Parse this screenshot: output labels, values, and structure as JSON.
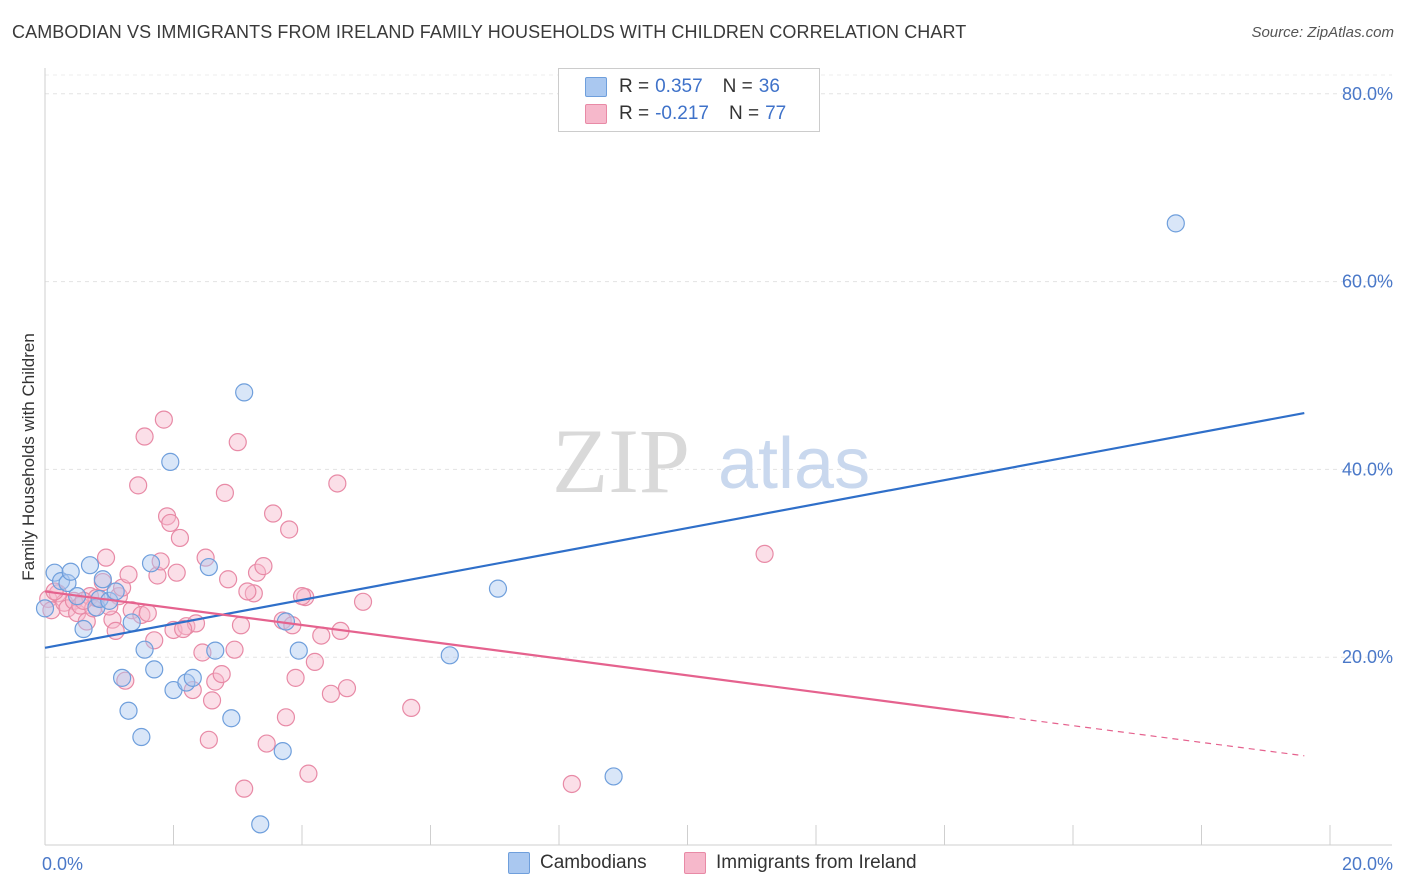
{
  "title": "CAMBODIAN VS IMMIGRANTS FROM IRELAND FAMILY HOUSEHOLDS WITH CHILDREN CORRELATION CHART",
  "source": "Source: ZipAtlas.com",
  "legend": {
    "rows": [
      {
        "r_label": "R =",
        "r_value": "0.357",
        "n_label": "N =",
        "n_value": "36"
      },
      {
        "r_label": "R =",
        "r_value": "-0.217",
        "n_label": "N =",
        "n_value": "77"
      }
    ]
  },
  "bottom_legend": [
    "Cambodians",
    "Immigrants from Ireland"
  ],
  "watermark": {
    "zip": "ZIP",
    "atlas": "atlas"
  },
  "colors": {
    "blue_fill": "#aac8f0",
    "blue_stroke": "#6f9fdc",
    "blue_line": "#2f6fc9",
    "pink_fill": "#f6b8cb",
    "pink_stroke": "#e88aa6",
    "pink_line": "#e5628e"
  },
  "chart_data": {
    "type": "scatter",
    "title": "CAMBODIAN VS IMMIGRANTS FROM IRELAND FAMILY HOUSEHOLDS WITH CHILDREN CORRELATION CHART",
    "xlabel": "",
    "ylabel": "Family Households with Children",
    "xlim": [
      0,
      20
    ],
    "ylim": [
      0,
      82
    ],
    "x_ticks": [
      "0.0%",
      "20.0%"
    ],
    "y_ticks": [
      {
        "value": 80,
        "label": "80.0%"
      },
      {
        "value": 60,
        "label": "60.0%"
      },
      {
        "value": 40,
        "label": "40.0%"
      },
      {
        "value": 20,
        "label": "20.0%"
      }
    ],
    "series": [
      {
        "name": "Cambodians",
        "r": 0.357,
        "n": 36,
        "trend": {
          "x0": 0,
          "y0": 21.0,
          "x1": 19.6,
          "y1": 46.0
        },
        "points": [
          [
            0.0,
            25.2
          ],
          [
            0.15,
            29.0
          ],
          [
            0.25,
            28.1
          ],
          [
            0.35,
            27.9
          ],
          [
            0.4,
            29.1
          ],
          [
            0.5,
            26.5
          ],
          [
            0.6,
            23.0
          ],
          [
            0.7,
            29.8
          ],
          [
            0.8,
            25.3
          ],
          [
            0.85,
            26.2
          ],
          [
            0.9,
            28.3
          ],
          [
            1.0,
            26.0
          ],
          [
            1.1,
            27.0
          ],
          [
            1.2,
            17.8
          ],
          [
            1.3,
            14.3
          ],
          [
            1.35,
            23.7
          ],
          [
            1.5,
            11.5
          ],
          [
            1.55,
            20.8
          ],
          [
            1.65,
            30.0
          ],
          [
            1.7,
            18.7
          ],
          [
            1.95,
            40.8
          ],
          [
            2.0,
            16.5
          ],
          [
            2.2,
            17.3
          ],
          [
            2.3,
            17.8
          ],
          [
            2.55,
            29.6
          ],
          [
            2.65,
            20.7
          ],
          [
            2.9,
            13.5
          ],
          [
            3.1,
            48.2
          ],
          [
            3.35,
            2.2
          ],
          [
            3.7,
            10.0
          ],
          [
            3.75,
            23.8
          ],
          [
            3.95,
            20.7
          ],
          [
            6.3,
            20.2
          ],
          [
            7.05,
            27.3
          ],
          [
            8.85,
            7.3
          ],
          [
            17.6,
            66.2
          ]
        ]
      },
      {
        "name": "Immigrants from Ireland",
        "r": -0.217,
        "n": 77,
        "trend": {
          "x0": 0,
          "y0": 27.0,
          "x1": 15.0,
          "y1": 13.6,
          "dash_x1": 19.6,
          "dash_y1": 9.5
        },
        "points": [
          [
            0.05,
            26.2
          ],
          [
            0.1,
            25.0
          ],
          [
            0.2,
            26.8
          ],
          [
            0.3,
            25.8
          ],
          [
            0.35,
            25.2
          ],
          [
            0.45,
            26.0
          ],
          [
            0.5,
            24.7
          ],
          [
            0.55,
            25.5
          ],
          [
            0.65,
            23.8
          ],
          [
            0.7,
            26.5
          ],
          [
            0.75,
            25.2
          ],
          [
            0.8,
            26.3
          ],
          [
            0.9,
            28.0
          ],
          [
            0.95,
            30.6
          ],
          [
            1.05,
            24.0
          ],
          [
            1.1,
            22.8
          ],
          [
            1.15,
            26.5
          ],
          [
            1.2,
            27.4
          ],
          [
            1.3,
            28.8
          ],
          [
            1.35,
            25.0
          ],
          [
            1.45,
            38.3
          ],
          [
            1.5,
            24.5
          ],
          [
            1.55,
            43.5
          ],
          [
            1.6,
            24.7
          ],
          [
            1.7,
            21.8
          ],
          [
            1.75,
            28.7
          ],
          [
            1.8,
            30.2
          ],
          [
            1.85,
            45.3
          ],
          [
            1.9,
            35.0
          ],
          [
            1.95,
            34.3
          ],
          [
            2.0,
            22.9
          ],
          [
            2.05,
            29.0
          ],
          [
            2.1,
            32.7
          ],
          [
            2.2,
            23.3
          ],
          [
            2.3,
            16.5
          ],
          [
            2.35,
            23.6
          ],
          [
            2.45,
            20.5
          ],
          [
            2.5,
            30.6
          ],
          [
            2.55,
            11.2
          ],
          [
            2.6,
            15.4
          ],
          [
            2.65,
            17.4
          ],
          [
            2.75,
            18.2
          ],
          [
            2.8,
            37.5
          ],
          [
            2.85,
            28.3
          ],
          [
            2.95,
            20.8
          ],
          [
            3.0,
            42.9
          ],
          [
            3.05,
            23.4
          ],
          [
            3.1,
            6.0
          ],
          [
            3.25,
            26.8
          ],
          [
            3.3,
            29.0
          ],
          [
            3.4,
            29.7
          ],
          [
            3.45,
            10.8
          ],
          [
            3.55,
            35.3
          ],
          [
            3.7,
            23.9
          ],
          [
            3.75,
            13.6
          ],
          [
            3.8,
            33.6
          ],
          [
            3.85,
            23.4
          ],
          [
            3.9,
            17.8
          ],
          [
            4.05,
            26.4
          ],
          [
            4.1,
            7.6
          ],
          [
            4.2,
            19.5
          ],
          [
            4.3,
            22.3
          ],
          [
            4.45,
            16.1
          ],
          [
            4.55,
            38.5
          ],
          [
            4.6,
            22.8
          ],
          [
            4.7,
            16.7
          ],
          [
            4.95,
            25.9
          ],
          [
            5.7,
            14.6
          ],
          [
            8.2,
            6.5
          ],
          [
            11.2,
            31.0
          ],
          [
            0.15,
            27.0
          ],
          [
            0.6,
            26.0
          ],
          [
            1.0,
            25.4
          ],
          [
            2.15,
            23.0
          ],
          [
            1.25,
            17.5
          ],
          [
            3.15,
            27.0
          ],
          [
            4.0,
            26.5
          ]
        ]
      }
    ]
  }
}
